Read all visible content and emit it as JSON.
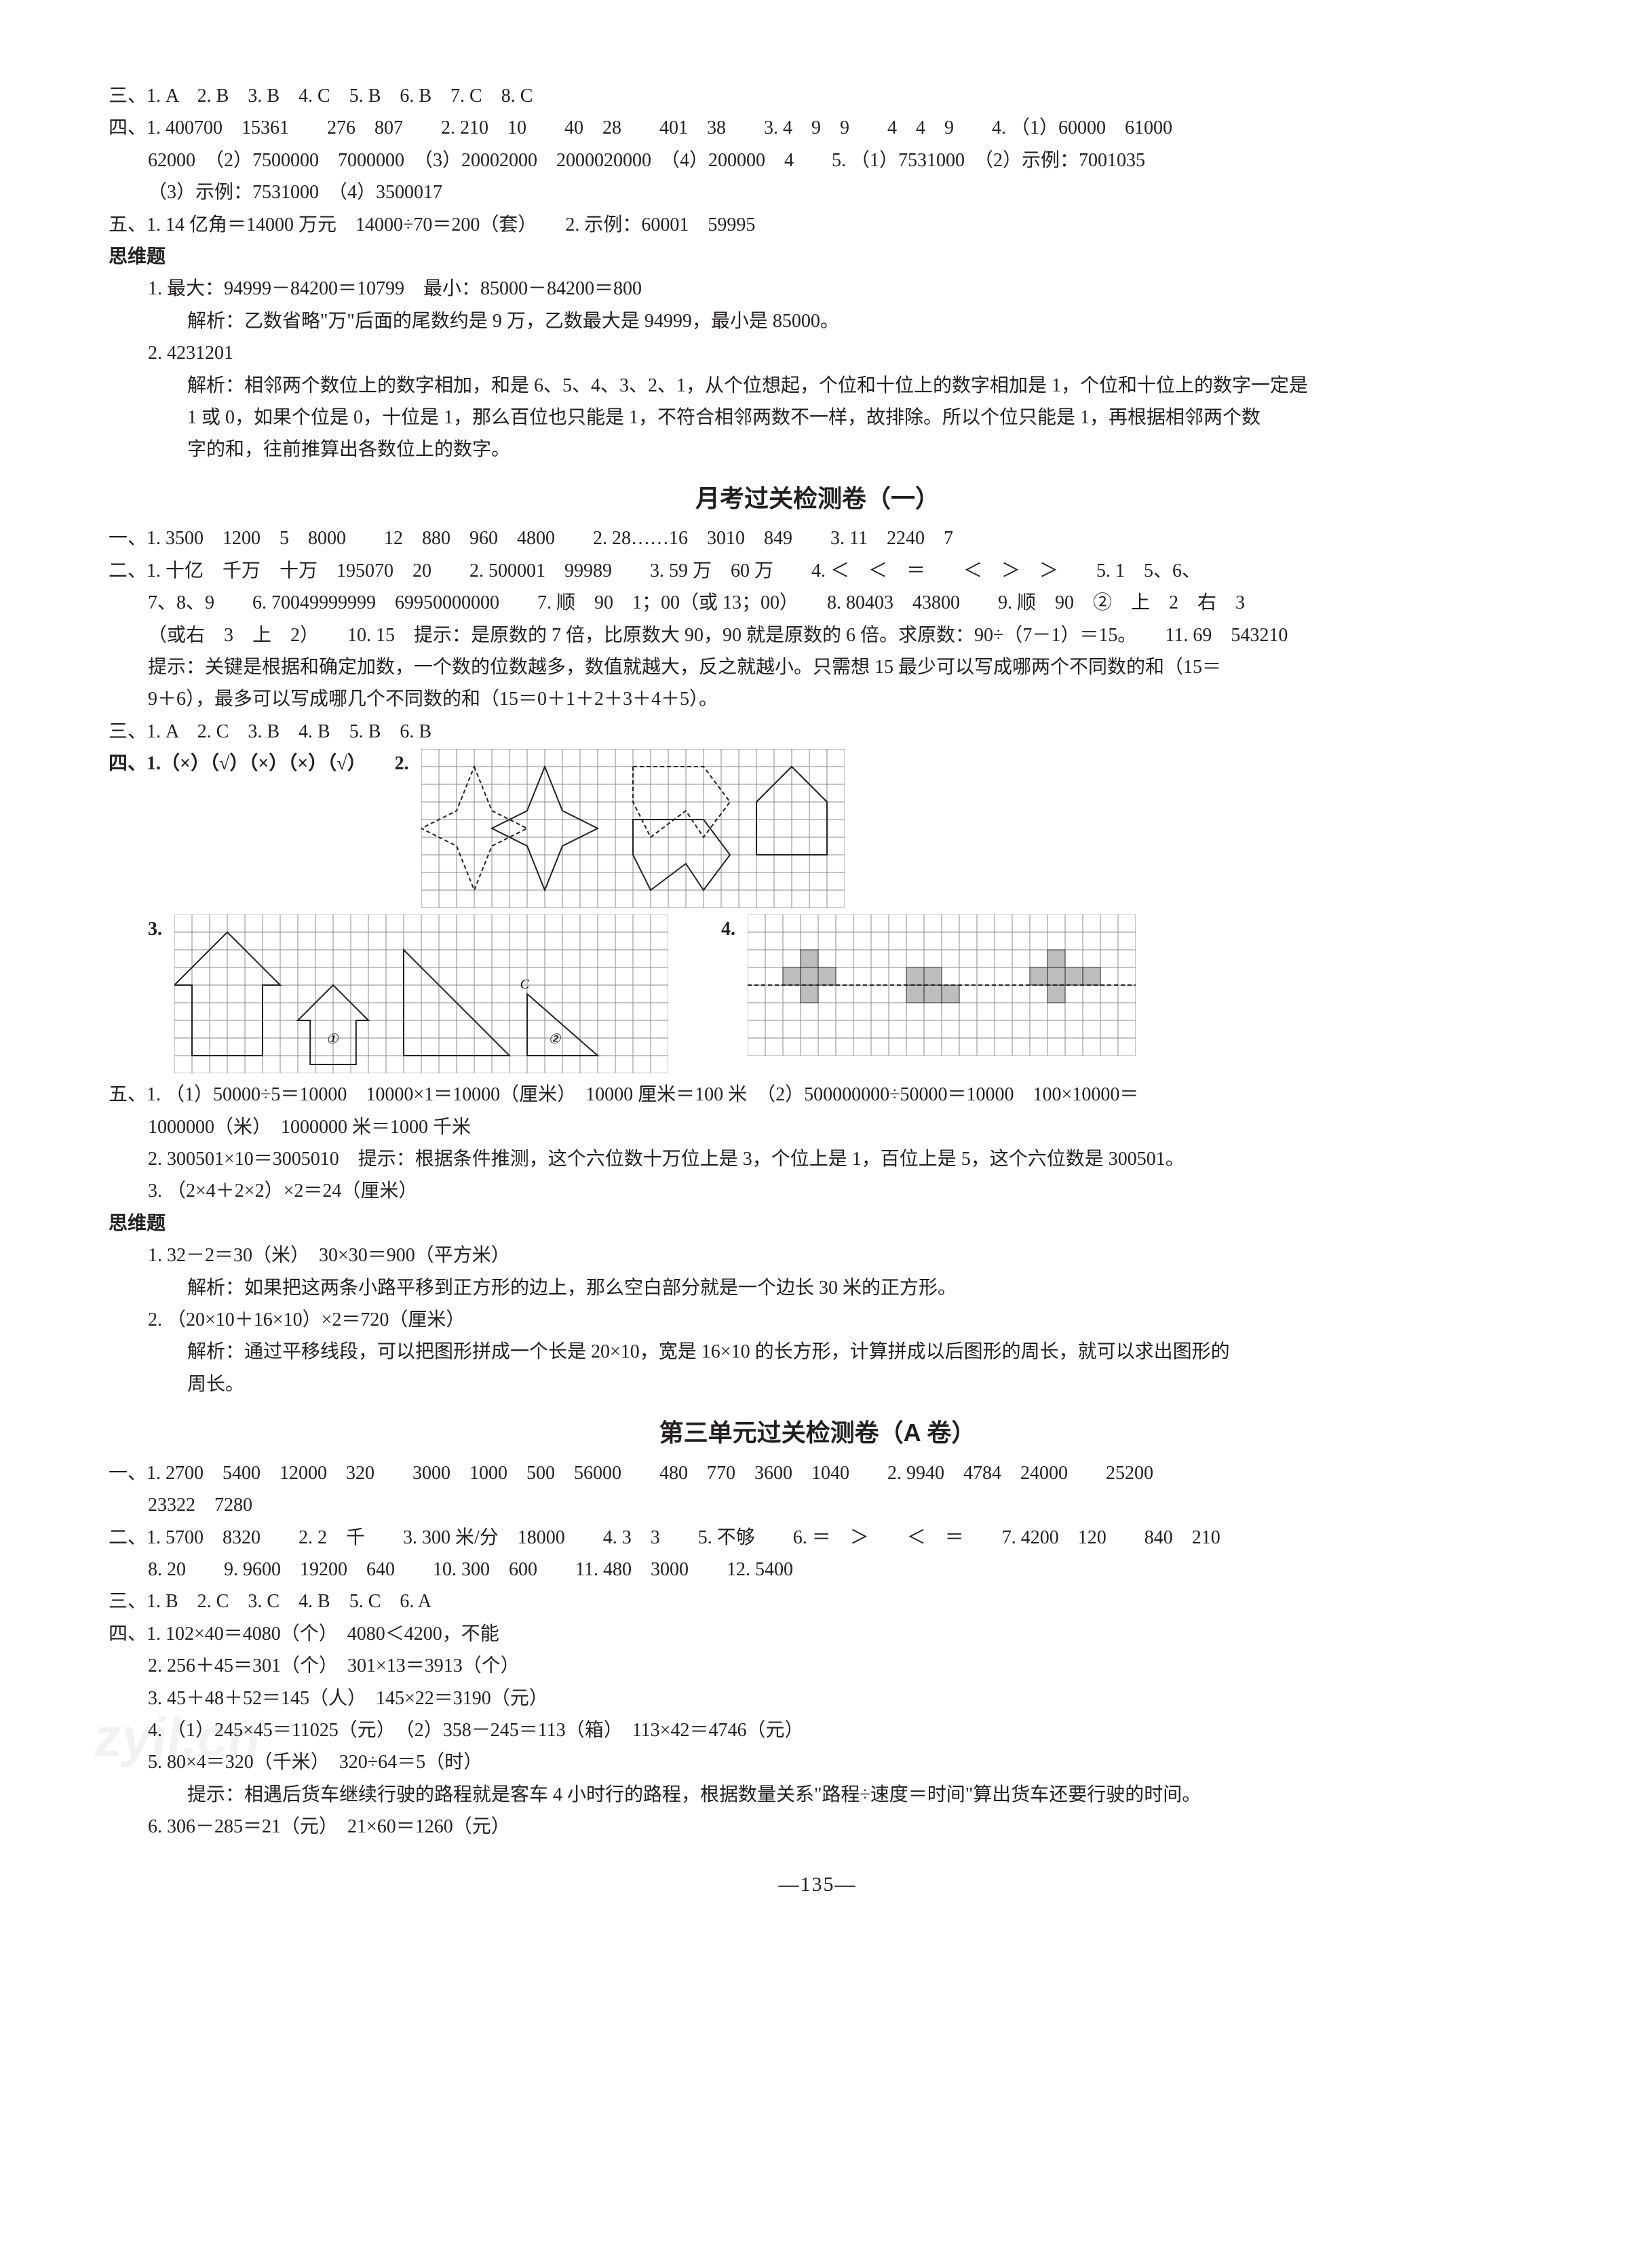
{
  "page_number": "—135—",
  "watermark": "zyjl.cn",
  "grids": {
    "q2": {
      "cols": 24,
      "rows": 9,
      "cell": 26,
      "stroke": "#888888",
      "shape_stroke": "#222222"
    },
    "q3": {
      "cols": 28,
      "rows": 9,
      "cell": 26,
      "stroke": "#888888",
      "shape_stroke": "#222222"
    },
    "q4": {
      "cols": 22,
      "rows": 8,
      "cell": 26,
      "stroke": "#888888",
      "shape_stroke": "#222222",
      "fill": "#bdbdbd"
    }
  },
  "top": {
    "san": "三、1. A　2. B　3. B　4. C　5. B　6. B　7. C　8. C",
    "si_l1": "四、1. 400700　15361　　276　807　　2. 210　10　　40　28　　401　38　　3. 4　9　9　　4　4　9　　4. （1）60000　61000",
    "si_l2": "62000　（2）7500000　7000000　（3）20002000　2000020000　（4）200000　4　　5. （1）7531000　（2）示例：7001035",
    "si_l3": "（3）示例：7531000　（4）3500017",
    "wu_l1": "五、1. 14 亿角＝14000 万元　14000÷70＝200（套）　　2. 示例：60001　59995",
    "sw_title": "思维题",
    "sw1_l1": "1. 最大：94999－84200＝10799　最小：85000－84200＝800",
    "sw1_l2": "解析：乙数省略\"万\"后面的尾数约是 9 万，乙数最大是 94999，最小是 85000。",
    "sw2_l1": "2. 4231201",
    "sw2_l2": "解析：相邻两个数位上的数字相加，和是 6、5、4、3、2、1，从个位想起，个位和十位上的数字相加是 1，个位和十位上的数字一定是",
    "sw2_l3": "1 或 0，如果个位是 0，十位是 1，那么百位也只能是 1，不符合相邻两数不一样，故排除。所以个位只能是 1，再根据相邻两个数",
    "sw2_l4": "字的和，往前推算出各数位上的数字。"
  },
  "yuekao": {
    "title": "月考过关检测卷（一）",
    "yi_l1": "一、1. 3500　1200　5　8000　　12　880　960　4800　　2. 28……16　3010　849　　3. 11　2240　7",
    "er_l1": "二、1. 十亿　千万　十万　195070　20　　2. 500001　99989　　3. 59 万　60 万　　4. ＜　＜　＝　　＜　＞　＞　　5. 1　5、6、",
    "er_l2": "7、8、9　　6. 70049999999　69950000000　　7. 顺　90　1；00（或 13；00）　　8. 80403　43800　　9. 顺　90　②　上　2　右　3",
    "er_l3": "（或右　3　上　2）　　10. 15　提示：是原数的 7 倍，比原数大 90，90 就是原数的 6 倍。求原数：90÷（7－1）＝15。　　11. 69　543210",
    "er_l4": "提示：关键是根据和确定加数，一个数的位数越多，数值就越大，反之就越小。只需想 15 最少可以写成哪两个不同数的和（15＝",
    "er_l5": "9＋6），最多可以写成哪几个不同数的和（15＝0＋1＋2＋3＋4＋5）。",
    "san": "三、1. A　2. C　3. B　4. B　5. B　6. B",
    "si": "四、1.（×）（√）（×）（×）（√）　　2.",
    "q3_label": "3.",
    "q4_label": "4.",
    "wu_l1": "五、1. （1）50000÷5＝10000　10000×1＝10000（厘米）　10000 厘米＝100 米　（2）500000000÷50000＝10000　100×10000＝",
    "wu_l2": "1000000（米）　1000000 米＝1000 千米",
    "wu_l3": "2. 300501×10＝3005010　提示：根据条件推测，这个六位数十万位上是 3，个位上是 1，百位上是 5，这个六位数是 300501。",
    "wu_l4": "3. （2×4＋2×2）×2＝24（厘米）",
    "sw_title": "思维题",
    "sw1_l1": "1. 32－2＝30（米）　30×30＝900（平方米）",
    "sw1_l2": "解析：如果把这两条小路平移到正方形的边上，那么空白部分就是一个边长 30 米的正方形。",
    "sw2_l1": "2. （20×10＋16×10）×2＝720（厘米）",
    "sw2_l2": "解析：通过平移线段，可以把图形拼成一个长是 20×10，宽是 16×10 的长方形，计算拼成以后图形的周长，就可以求出图形的",
    "sw2_l3": "周长。"
  },
  "unit3": {
    "title": "第三单元过关检测卷（A 卷）",
    "yi_l1": "一、1. 2700　5400　12000　320　　3000　1000　500　56000　　480　770　3600　1040　　2. 9940　4784　24000　　25200",
    "yi_l2": "23322　7280",
    "er_l1": "二、1. 5700　8320　　2. 2　千　　3. 300 米/分　18000　　4. 3　3　　5. 不够　　6. ＝　＞　　＜　＝　　7. 4200　120　　840　210",
    "er_l2": "8. 20　　9. 9600　19200　640　　10. 300　600　　11. 480　3000　　12. 5400",
    "san": "三、1. B　2. C　3. C　4. B　5. C　6. A",
    "si_l1": "四、1. 102×40＝4080（个）　4080＜4200，不能",
    "si_l2": "2. 256＋45＝301（个）　301×13＝3913（个）",
    "si_l3": "3. 45＋48＋52＝145（人）　145×22＝3190（元）",
    "si_l4": "4. （1）245×45＝11025（元）　（2）358－245＝113（箱）　113×42＝4746（元）",
    "si_l5": "5. 80×4＝320（千米）　320÷64＝5（时）",
    "si_l6": "提示：相遇后货车继续行驶的路程就是客车 4 小时行的路程，根据数量关系\"路程÷速度＝时间\"算出货车还要行驶的时间。",
    "si_l7": "6. 306－285＝21（元）　21×60＝1260（元）"
  }
}
